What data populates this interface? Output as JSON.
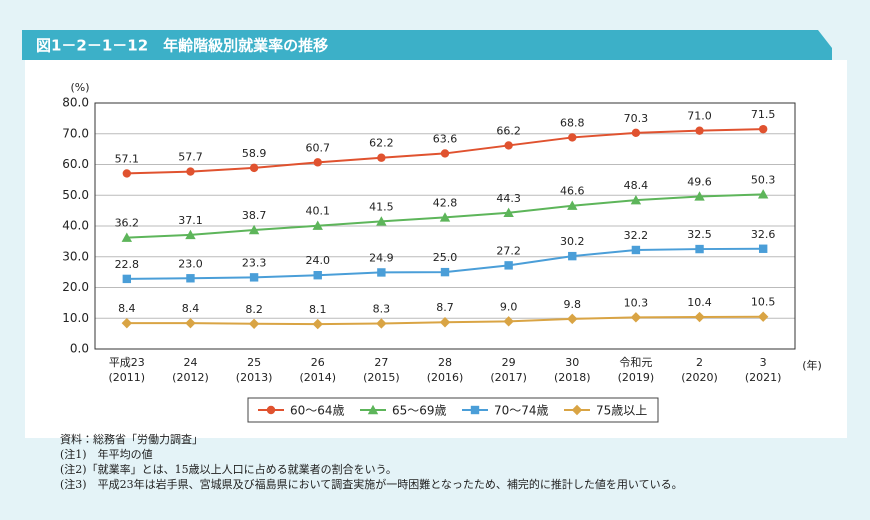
{
  "chart_data": {
    "type": "line",
    "title": "図1－2－1－12　年齢階級別就業率の推移",
    "y_unit": "(%)",
    "x_unit": "(年)",
    "categories": [
      "平成23",
      "24",
      "25",
      "26",
      "27",
      "28",
      "29",
      "30",
      "令和元",
      "2",
      "3"
    ],
    "category_years": [
      "(2011)",
      "(2012)",
      "(2013)",
      "(2014)",
      "(2015)",
      "(2016)",
      "(2017)",
      "(2018)",
      "(2019)",
      "(2020)",
      "(2021)"
    ],
    "ylim": [
      0,
      80
    ],
    "yticks": [
      {
        "value": 0,
        "label": "0.0"
      },
      {
        "value": 10,
        "label": "10.0"
      },
      {
        "value": 20,
        "label": "20.0"
      },
      {
        "value": 30,
        "label": "30.0"
      },
      {
        "value": 40,
        "label": "40.0"
      },
      {
        "value": 50,
        "label": "50.0"
      },
      {
        "value": 60,
        "label": "60.0"
      },
      {
        "value": 70,
        "label": "70.0"
      },
      {
        "value": 80,
        "label": "80.0"
      }
    ],
    "grid": true,
    "series": [
      {
        "name": "60～64歳",
        "color": "#e0522f",
        "marker": "circle",
        "values": [
          57.1,
          57.7,
          58.9,
          60.7,
          62.2,
          63.6,
          66.2,
          68.8,
          70.3,
          71.0,
          71.5
        ],
        "value_labels": [
          "57.1",
          "57.7",
          "58.9",
          "60.7",
          "62.2",
          "63.6",
          "66.2",
          "68.8",
          "70.3",
          "71.0",
          "71.5"
        ]
      },
      {
        "name": "65～69歳",
        "color": "#5db55a",
        "marker": "triangle",
        "values": [
          36.2,
          37.1,
          38.7,
          40.1,
          41.5,
          42.8,
          44.3,
          46.6,
          48.4,
          49.6,
          50.3
        ],
        "value_labels": [
          "36.2",
          "37.1",
          "38.7",
          "40.1",
          "41.5",
          "42.8",
          "44.3",
          "46.6",
          "48.4",
          "49.6",
          "50.3"
        ]
      },
      {
        "name": "70～74歳",
        "color": "#4a9ed8",
        "marker": "square",
        "values": [
          22.8,
          23.0,
          23.3,
          24.0,
          24.9,
          25.0,
          27.2,
          30.2,
          32.2,
          32.5,
          32.6
        ],
        "value_labels": [
          "22.8",
          "23.0",
          "23.3",
          "24.0",
          "24.9",
          "25.0",
          "27.2",
          "30.2",
          "32.2",
          "32.5",
          "32.6"
        ]
      },
      {
        "name": "75歳以上",
        "color": "#d9a444",
        "marker": "diamond",
        "values": [
          8.4,
          8.4,
          8.2,
          8.1,
          8.3,
          8.7,
          9.0,
          9.8,
          10.3,
          10.4,
          10.5
        ],
        "value_labels": [
          "8.4",
          "8.4",
          "8.2",
          "8.1",
          "8.3",
          "8.7",
          "9.0",
          "9.8",
          "10.3",
          "10.4",
          "10.5"
        ]
      }
    ],
    "notes": [
      "資料：総務省「労働力調査」",
      "(注1)　年平均の値",
      "(注2)「就業率」とは、15歳以上人口に占める就業者の割合をいう。",
      "(注3)　平成23年は岩手県、宮城県及び福島県において調査実施が一時困難となったため、補完的に推計した値を用いている。"
    ]
  }
}
